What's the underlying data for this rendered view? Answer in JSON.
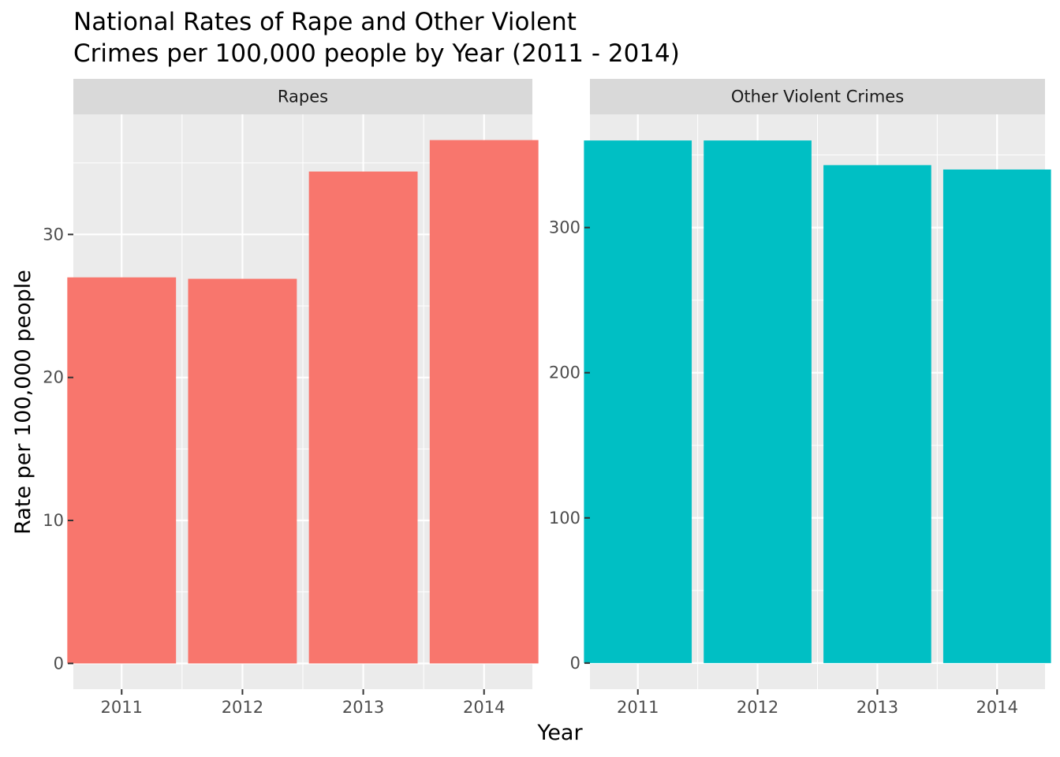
{
  "chart_data": {
    "type": "bar",
    "title_lines": [
      "National Rates of Rape and Other Violent",
      "Crimes per 100,000 people by Year (2011 - 2014)"
    ],
    "xlabel": "Year",
    "ylabel": "Rate per 100,000 people",
    "grid": true,
    "categories": [
      "2011",
      "2012",
      "2013",
      "2014"
    ],
    "facets": [
      {
        "name": "Rapes",
        "color": "#F8766D",
        "values": [
          27.0,
          26.9,
          34.4,
          36.6
        ],
        "ylim": [
          -1.8,
          38.4
        ],
        "yticks": [
          0,
          10,
          20,
          30
        ],
        "yminor": [
          5,
          15,
          25,
          35
        ]
      },
      {
        "name": "Other Violent Crimes",
        "color": "#00BFC4",
        "values": [
          360,
          360,
          343,
          340
        ],
        "ylim": [
          -18,
          378
        ],
        "yticks": [
          0,
          100,
          200,
          300
        ],
        "yminor": [
          50,
          150,
          250,
          350
        ]
      }
    ]
  }
}
